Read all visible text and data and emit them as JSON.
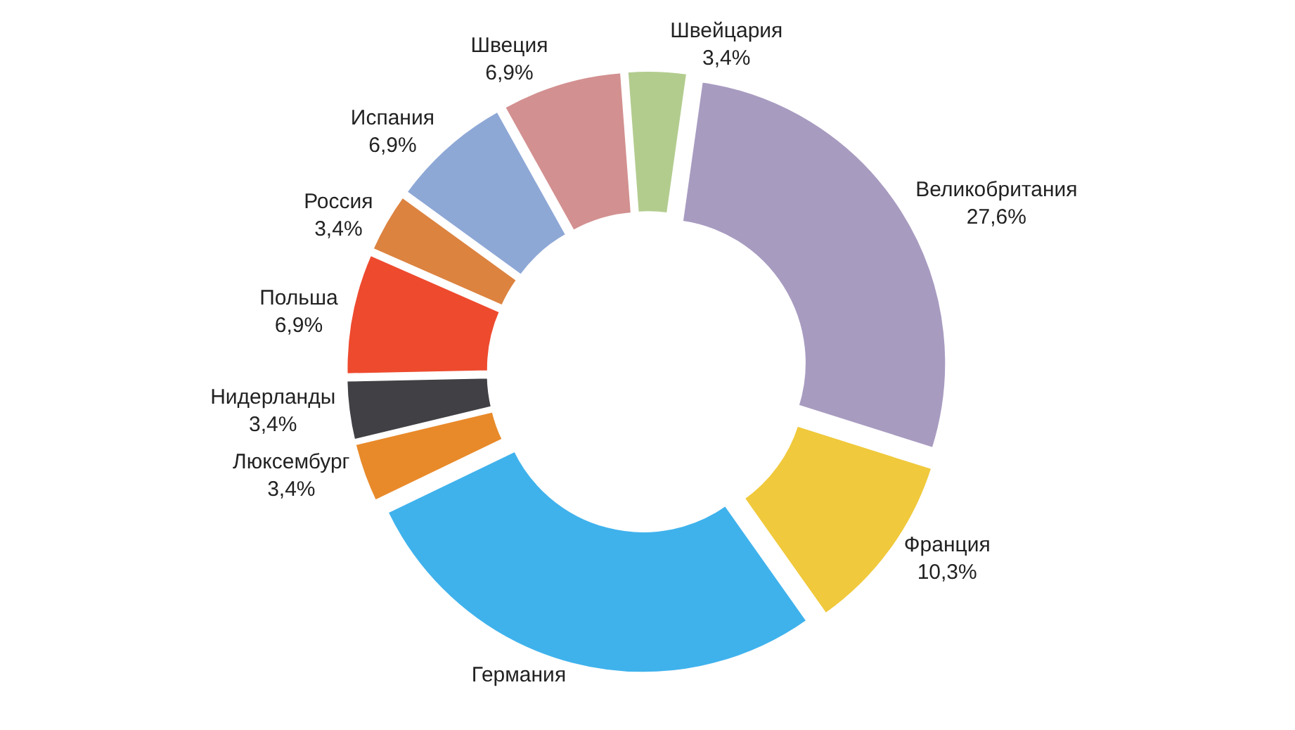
{
  "chart_data": {
    "type": "donut",
    "categories": [
      "Великобритания",
      "Франция",
      "Германия",
      "Люксембург",
      "Нидерланды",
      "Польша",
      "Россия",
      "Испания",
      "Швеция",
      "Швейцария"
    ],
    "values": [
      27.6,
      10.3,
      27.6,
      3.4,
      3.4,
      6.9,
      3.4,
      6.9,
      6.9,
      3.4
    ],
    "value_labels": [
      "27,6%",
      "10,3%",
      null,
      "3,4%",
      "3,4%",
      "6,9%",
      "3,4%",
      "6,9%",
      "6,9%",
      "3,4%"
    ],
    "colors": [
      "#a89bc0",
      "#f0c93c",
      "#3fb2ec",
      "#e88a2a",
      "#404045",
      "#ee4a2e",
      "#dc8340",
      "#8ea8d6",
      "#d39090",
      "#b2cc8e"
    ],
    "legend": false
  }
}
